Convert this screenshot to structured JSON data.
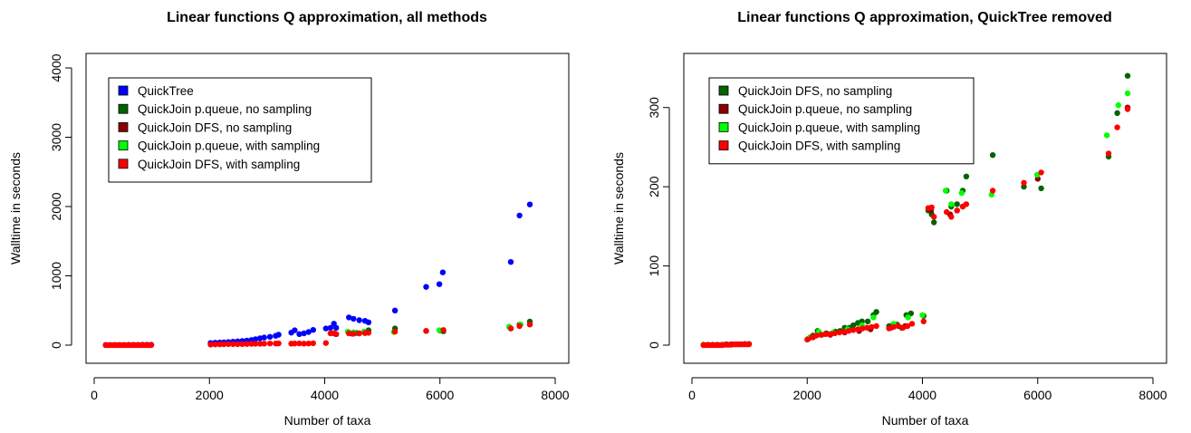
{
  "chart_data": [
    {
      "type": "scatter",
      "title": "Linear functions Q approximation, all methods",
      "xlabel": "Number of taxa",
      "ylabel": "Walltime in seconds",
      "xlim": [
        0,
        8000
      ],
      "ylim": [
        0,
        4000
      ],
      "xticks": [
        "0",
        "2000",
        "4000",
        "6000",
        "8000"
      ],
      "yticks": [
        "0",
        "1000",
        "2000",
        "3000",
        "4000"
      ],
      "legend_position": "top-left",
      "series": [
        {
          "name": "QuickTree",
          "color": "#0000ff",
          "x": [
            200,
            280,
            360,
            440,
            520,
            600,
            680,
            760,
            840,
            920,
            990,
            2020,
            2100,
            2180,
            2250,
            2330,
            2410,
            2490,
            2570,
            2650,
            2730,
            2800,
            2880,
            2950,
            3050,
            3150,
            3200,
            3420,
            3480,
            3560,
            3640,
            3720,
            3800,
            4020,
            4100,
            4160,
            4200,
            4420,
            4500,
            4600,
            4700,
            4760,
            5220,
            5760,
            5990,
            6050,
            7230,
            7380,
            7560
          ],
          "y": [
            2,
            2,
            3,
            3,
            3,
            4,
            4,
            4,
            5,
            5,
            5,
            30,
            35,
            38,
            40,
            45,
            50,
            55,
            60,
            65,
            75,
            85,
            100,
            110,
            120,
            135,
            150,
            180,
            215,
            160,
            170,
            190,
            220,
            240,
            250,
            310,
            250,
            400,
            380,
            360,
            350,
            330,
            500,
            840,
            880,
            1050,
            1200,
            1870,
            2030
          ]
        },
        {
          "name": "QuickJoin p.queue, no sampling",
          "color": "#006400",
          "x": [
            4200,
            4420,
            4550,
            4760,
            5220,
            5760,
            6060,
            7230,
            7380,
            7560
          ],
          "y": [
            160,
            180,
            175,
            215,
            240,
            205,
            200,
            240,
            295,
            340
          ]
        },
        {
          "name": "QuickJoin DFS, no sampling",
          "color": "#8b0000",
          "x": [
            4160,
            4480,
            4600,
            4700,
            6000,
            7560
          ],
          "y": [
            170,
            165,
            170,
            175,
            210,
            300
          ]
        },
        {
          "name": "QuickJoin p.queue, with sampling",
          "color": "#00ff00",
          "x": [
            4400,
            4500,
            4680,
            5200,
            5990,
            7200,
            7400
          ],
          "y": [
            195,
            185,
            195,
            190,
            215,
            265,
            300
          ]
        },
        {
          "name": "QuickJoin DFS, with sampling",
          "color": "#ff0000",
          "x": [
            200,
            240,
            280,
            320,
            360,
            400,
            440,
            480,
            520,
            560,
            600,
            640,
            680,
            720,
            760,
            800,
            840,
            880,
            920,
            960,
            990,
            2020,
            2100,
            2180,
            2250,
            2330,
            2410,
            2490,
            2570,
            2650,
            2730,
            2800,
            2880,
            2950,
            3050,
            3150,
            3200,
            3420,
            3480,
            3560,
            3640,
            3720,
            3800,
            4020,
            4100,
            4160,
            4200,
            4420,
            4500,
            4600,
            4700,
            4760,
            5220,
            5760,
            6060,
            7230,
            7380,
            7560
          ],
          "y": [
            0,
            0,
            0,
            0,
            0,
            0,
            0,
            0,
            0,
            0,
            0,
            0,
            0,
            0,
            0,
            0,
            0,
            0,
            0,
            0,
            0,
            8,
            10,
            12,
            13,
            14,
            15,
            15,
            16,
            17,
            18,
            19,
            20,
            22,
            24,
            24,
            25,
            22,
            24,
            25,
            22,
            24,
            28,
            30,
            170,
            172,
            160,
            170,
            165,
            170,
            175,
            178,
            195,
            205,
            218,
            242,
            275,
            298
          ]
        }
      ]
    },
    {
      "type": "scatter",
      "title": "Linear functions Q approximation, QuickTree removed",
      "xlabel": "Number of taxa",
      "ylabel": "Walltime in seconds",
      "xlim": [
        0,
        8000
      ],
      "ylim": [
        0,
        350
      ],
      "xticks": [
        "0",
        "2000",
        "4000",
        "6000",
        "8000"
      ],
      "yticks": [
        "0",
        "100",
        "200",
        "300"
      ],
      "legend_position": "top-left",
      "series": [
        {
          "name": "QuickJoin DFS, no sampling",
          "color": "#006400",
          "x": [
            200,
            280,
            360,
            440,
            520,
            600,
            680,
            760,
            840,
            920,
            990,
            2020,
            2100,
            2180,
            2250,
            2330,
            2410,
            2490,
            2570,
            2650,
            2730,
            2800,
            2880,
            2950,
            3050,
            3150,
            3200,
            3420,
            3480,
            3560,
            3640,
            3720,
            3800,
            4020,
            4100,
            4160,
            4200,
            4420,
            4500,
            4600,
            4700,
            4760,
            5220,
            5760,
            6060,
            7230,
            7380,
            7560
          ],
          "y": [
            0.5,
            0.5,
            0.5,
            0.5,
            0.5,
            1,
            1,
            1,
            1,
            1.5,
            1.5,
            8,
            12,
            18,
            13,
            15,
            14,
            17,
            18,
            22,
            22,
            25,
            28,
            30,
            30,
            38,
            42,
            24,
            25,
            26,
            22,
            38,
            40,
            37,
            170,
            165,
            155,
            195,
            175,
            178,
            195,
            213,
            240,
            200,
            198,
            238,
            293,
            340
          ]
        },
        {
          "name": "QuickJoin p.queue, no sampling",
          "color": "#8b0000",
          "x": [
            2100,
            2400,
            2650,
            2900,
            3100,
            3450,
            3700,
            4150,
            4480,
            4600,
            4700,
            6000,
            7560
          ],
          "y": [
            10,
            13,
            16,
            18,
            20,
            22,
            24,
            170,
            165,
            170,
            175,
            210,
            300
          ]
        },
        {
          "name": "QuickJoin p.queue, with sampling",
          "color": "#00ff00",
          "x": [
            2050,
            2200,
            2450,
            2700,
            2950,
            3150,
            3500,
            3750,
            4000,
            4400,
            4500,
            4680,
            5200,
            5990,
            7200,
            7400,
            7560
          ],
          "y": [
            10,
            17,
            16,
            20,
            25,
            35,
            27,
            35,
            38,
            195,
            178,
            192,
            190,
            215,
            265,
            303,
            318
          ]
        },
        {
          "name": "QuickJoin DFS, with sampling",
          "color": "#ff0000",
          "x": [
            200,
            240,
            280,
            320,
            360,
            400,
            440,
            480,
            520,
            560,
            600,
            640,
            680,
            720,
            760,
            800,
            840,
            880,
            920,
            960,
            990,
            2000,
            2080,
            2160,
            2240,
            2320,
            2400,
            2480,
            2560,
            2640,
            2720,
            2800,
            2880,
            2960,
            3040,
            3120,
            3200,
            3420,
            3500,
            3580,
            3660,
            3740,
            3820,
            4020,
            4100,
            4160,
            4200,
            4420,
            4500,
            4600,
            4700,
            4760,
            5220,
            5760,
            6060,
            7230,
            7380,
            7560
          ],
          "y": [
            0,
            0,
            0,
            0,
            0,
            0,
            0,
            0,
            0,
            0.5,
            0.5,
            0.5,
            0.5,
            1,
            1,
            1,
            1,
            1,
            1,
            1,
            1,
            7,
            10,
            12,
            13,
            14,
            14,
            15,
            16,
            17,
            18,
            19,
            20,
            21,
            22,
            23,
            24,
            21,
            23,
            24,
            22,
            24,
            27,
            30,
            173,
            174,
            162,
            168,
            162,
            170,
            175,
            178,
            195,
            205,
            218,
            242,
            275,
            298
          ]
        }
      ]
    }
  ]
}
